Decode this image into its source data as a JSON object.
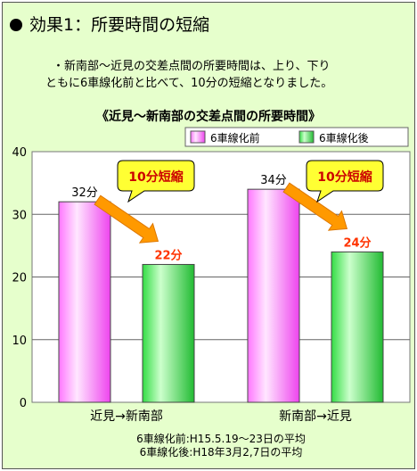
{
  "header": {
    "title": "効果1：所要時間の短縮"
  },
  "description": {
    "line1": "・新南部〜近見の交差点間の所要時間は、上り、下り",
    "line2": "ともに6車線化前と比べて、10分の短縮となりました。"
  },
  "colors": {
    "background": "#e6ffcc",
    "before_bar": "#ff66ff",
    "after_bar": "#33dd44",
    "arrow": "#ff9900",
    "callout_fill": "#ffff33",
    "callout_text": "#cc0000",
    "after_label": "#ff3300"
  },
  "chart_data": {
    "type": "bar",
    "title": "《近見〜新南部の交差点間の所要時間》",
    "categories": [
      "近見→新南部",
      "新南部→近見"
    ],
    "series": [
      {
        "name": "6車線化前",
        "values": [
          32,
          34
        ],
        "labels": [
          "32分",
          "34分"
        ]
      },
      {
        "name": "6車線化後",
        "values": [
          22,
          24
        ],
        "labels": [
          "22分",
          "24分"
        ]
      }
    ],
    "ylim": [
      0,
      40
    ],
    "yticks": [
      0,
      10,
      20,
      30,
      40
    ],
    "grid": true,
    "legend": "top-right",
    "callouts": [
      "10分短縮",
      "10分短縮"
    ],
    "notes": [
      "6車線化前:H15.5.19〜23日の平均",
      "6車線化後:H18年3月2,7日の平均"
    ]
  }
}
